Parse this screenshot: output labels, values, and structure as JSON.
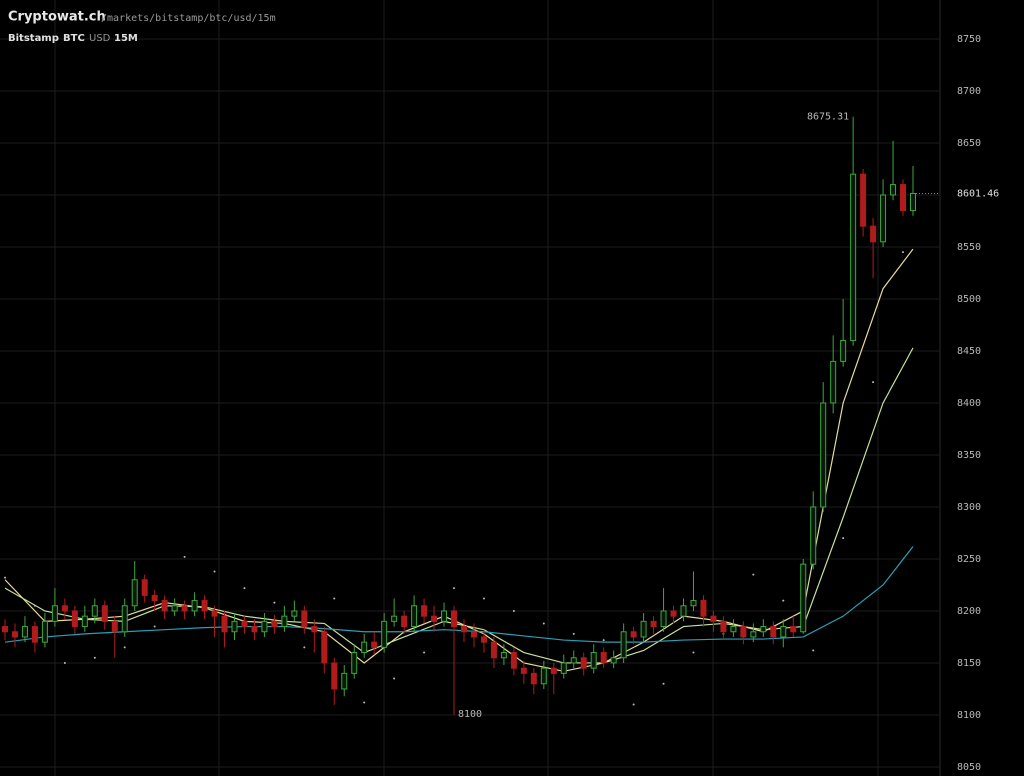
{
  "chart_data": {
    "type": "candlestick",
    "title": "Cryptowat.ch",
    "subtitle": "/markets/bitstamp/btc/usd/15m",
    "exchange": "Bitstamp",
    "base": "BTC",
    "quote": "USD",
    "interval": "15M",
    "up_color": "#3fa63f",
    "down_color": "#b01c1c",
    "open": [
      8185,
      8180,
      8175,
      8185,
      8170,
      8190,
      8205,
      8200,
      8185,
      8195,
      8205,
      8190,
      8180,
      8205,
      8230,
      8215,
      8210,
      8200,
      8205,
      8200,
      8210,
      8200,
      8195,
      8180,
      8190,
      8185,
      8180,
      8190,
      8185,
      8195,
      8200,
      8185,
      8180,
      8150,
      8125,
      8140,
      8160,
      8170,
      8165,
      8190,
      8195,
      8185,
      8205,
      8195,
      8190,
      8200,
      8185,
      8180,
      8175,
      8170,
      8155,
      8160,
      8145,
      8140,
      8130,
      8145,
      8140,
      8150,
      8155,
      8145,
      8160,
      8150,
      8155,
      8180,
      8175,
      8190,
      8185,
      8200,
      8195,
      8205,
      8210,
      8195,
      8190,
      8180,
      8185,
      8175,
      8180,
      8185,
      8175,
      8185,
      8180,
      8245,
      8300,
      8400,
      8440,
      8460,
      8620,
      8570,
      8555,
      8600,
      8610,
      8585
    ],
    "high": [
      8192,
      8188,
      8195,
      8190,
      8198,
      8222,
      8212,
      8205,
      8205,
      8212,
      8210,
      8195,
      8212,
      8248,
      8235,
      8220,
      8215,
      8212,
      8210,
      8218,
      8215,
      8205,
      8200,
      8198,
      8195,
      8192,
      8198,
      8196,
      8205,
      8210,
      8205,
      8192,
      8185,
      8155,
      8148,
      8168,
      8178,
      8180,
      8198,
      8212,
      8200,
      8215,
      8212,
      8205,
      8208,
      8205,
      8192,
      8188,
      8182,
      8175,
      8168,
      8165,
      8152,
      8145,
      8152,
      8150,
      8158,
      8162,
      8160,
      8168,
      8165,
      8162,
      8188,
      8185,
      8198,
      8195,
      8222,
      8205,
      8212,
      8238,
      8215,
      8200,
      8195,
      8192,
      8190,
      8188,
      8192,
      8190,
      8192,
      8195,
      8250,
      8315,
      8420,
      8465,
      8500,
      8675.31,
      8625,
      8578,
      8615,
      8652,
      8615,
      8628
    ],
    "low": [
      8172,
      8165,
      8170,
      8160,
      8165,
      8185,
      8192,
      8178,
      8180,
      8188,
      8182,
      8155,
      8175,
      8200,
      8208,
      8200,
      8192,
      8195,
      8192,
      8195,
      8192,
      8175,
      8165,
      8172,
      8178,
      8172,
      8175,
      8178,
      8180,
      8190,
      8178,
      8160,
      8140,
      8109.74,
      8118,
      8135,
      8155,
      8158,
      8160,
      8185,
      8178,
      8180,
      8188,
      8180,
      8185,
      8100,
      8170,
      8165,
      8160,
      8145,
      8148,
      8138,
      8130,
      8120,
      8125,
      8120,
      8135,
      8145,
      8138,
      8140,
      8145,
      8145,
      8150,
      8168,
      8170,
      8178,
      8180,
      8188,
      8190,
      8200,
      8185,
      8180,
      8172,
      8175,
      8168,
      8170,
      8175,
      8168,
      8165,
      8175,
      8178,
      8240,
      8295,
      8390,
      8435,
      8455,
      8560,
      8520,
      8550,
      8595,
      8580,
      8580
    ],
    "close": [
      8180,
      8175,
      8185,
      8170,
      8190,
      8205,
      8200,
      8185,
      8195,
      8205,
      8190,
      8180,
      8205,
      8230,
      8215,
      8210,
      8200,
      8205,
      8200,
      8210,
      8200,
      8195,
      8180,
      8190,
      8185,
      8180,
      8190,
      8185,
      8195,
      8200,
      8185,
      8180,
      8150,
      8125,
      8140,
      8160,
      8170,
      8165,
      8190,
      8195,
      8185,
      8205,
      8195,
      8190,
      8200,
      8185,
      8180,
      8175,
      8170,
      8155,
      8160,
      8145,
      8140,
      8130,
      8145,
      8140,
      8150,
      8155,
      8145,
      8160,
      8150,
      8155,
      8180,
      8175,
      8190,
      8185,
      8200,
      8195,
      8205,
      8210,
      8195,
      8190,
      8180,
      8185,
      8175,
      8180,
      8185,
      8175,
      8185,
      8180,
      8245,
      8300,
      8400,
      8440,
      8460,
      8620,
      8570,
      8555,
      8600,
      8610,
      8585,
      8601.46
    ],
    "indicators": [
      {
        "style": "line",
        "color": "#e6dc9a",
        "x": [
          0,
          4,
          8,
          12,
          16,
          20,
          24,
          28,
          32,
          36,
          40,
          44,
          48,
          52,
          56,
          60,
          64,
          68,
          72,
          76,
          80,
          84,
          88,
          91
        ],
        "values": [
          8230,
          8190,
          8192,
          8195,
          8208,
          8203,
          8190,
          8188,
          8180,
          8150,
          8180,
          8195,
          8178,
          8150,
          8142,
          8150,
          8170,
          8195,
          8190,
          8180,
          8200,
          8400,
          8510,
          8548
        ]
      },
      {
        "style": "line",
        "color": "#c6e29c",
        "x": [
          0,
          4,
          8,
          12,
          16,
          20,
          24,
          28,
          32,
          36,
          40,
          44,
          48,
          52,
          56,
          60,
          64,
          68,
          72,
          76,
          80,
          84,
          88,
          91
        ],
        "values": [
          8222,
          8200,
          8192,
          8190,
          8205,
          8204,
          8195,
          8190,
          8188,
          8160,
          8175,
          8190,
          8182,
          8160,
          8150,
          8150,
          8162,
          8185,
          8188,
          8182,
          8185,
          8290,
          8400,
          8453
        ]
      },
      {
        "style": "line",
        "color": "#2a9fb8",
        "x": [
          0,
          4,
          8,
          12,
          16,
          20,
          24,
          28,
          32,
          36,
          40,
          44,
          48,
          52,
          56,
          60,
          64,
          68,
          72,
          76,
          80,
          84,
          88,
          91
        ],
        "values": [
          8170,
          8175,
          8178,
          8180,
          8182,
          8184,
          8185,
          8185,
          8183,
          8180,
          8180,
          8182,
          8180,
          8176,
          8172,
          8170,
          8170,
          8172,
          8173,
          8173,
          8175,
          8195,
          8225,
          8262
        ]
      },
      {
        "style": "dots",
        "color": "#bbbbbb",
        "x": [
          0,
          3,
          6,
          9,
          12,
          15,
          18,
          21,
          24,
          27,
          30,
          33,
          36,
          39,
          42,
          45,
          48,
          51,
          54,
          57,
          60,
          63,
          66,
          69,
          72,
          75,
          78,
          81,
          84,
          87,
          90
        ],
        "values": [
          8232,
          8205,
          8150,
          8155,
          8165,
          8185,
          8252,
          8238,
          8222,
          8208,
          8165,
          8212,
          8112,
          8135,
          8160,
          8222,
          8212,
          8200,
          8188,
          8178,
          8172,
          8110,
          8130,
          8160,
          8178,
          8235,
          8210,
          8162,
          8270,
          8420,
          8545
        ]
      }
    ],
    "ylim": [
      8041.3,
      8787.5
    ],
    "yticks": [
      8050,
      8100,
      8150,
      8200,
      8250,
      8300,
      8350,
      8400,
      8450,
      8500,
      8550,
      8600,
      8650,
      8700,
      8750
    ],
    "grid": true
  }
}
